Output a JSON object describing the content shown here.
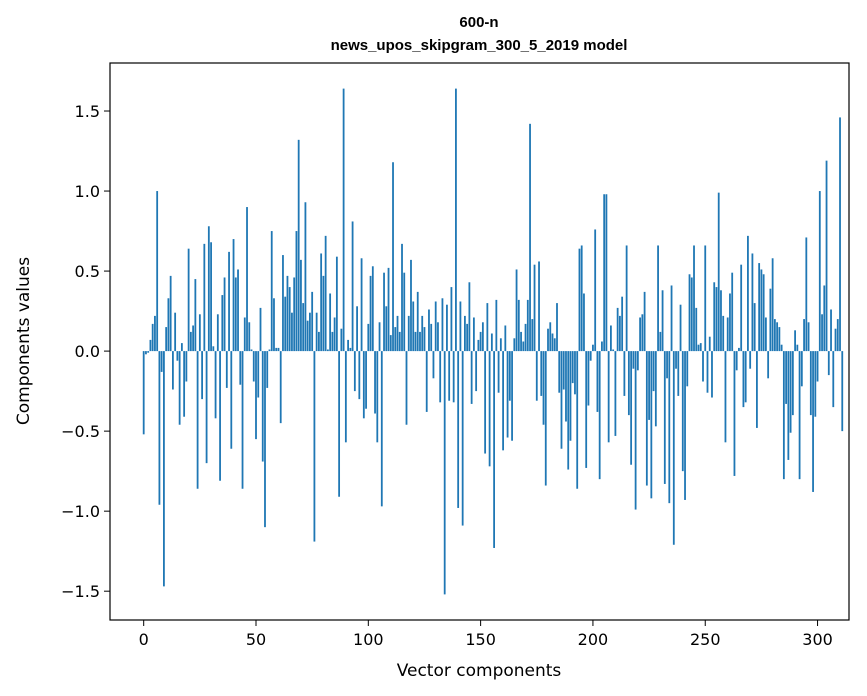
{
  "chart_data": {
    "type": "bar",
    "title": "600-n",
    "subtitle": "news_upos_skipgram_300_5_2019 model",
    "xlabel": "Vector components",
    "ylabel": "Components values",
    "xlim": [
      -15,
      314
    ],
    "ylim": [
      -1.68,
      1.8
    ],
    "xticks": [
      0,
      50,
      100,
      150,
      200,
      250,
      300
    ],
    "xtick_labels": [
      "0",
      "50",
      "100",
      "150",
      "200",
      "250",
      "300"
    ],
    "yticks": [
      -1.5,
      -1.0,
      -0.5,
      0.0,
      0.5,
      1.0,
      1.5
    ],
    "ytick_labels": [
      "−1.5",
      "−1.0",
      "−0.5",
      "0.0",
      "0.5",
      "1.0",
      "1.5"
    ],
    "bar_color": "#1f77b4",
    "grid": false,
    "values": [
      -0.52,
      -0.02,
      -0.01,
      0.07,
      0.17,
      0.22,
      1.0,
      -0.96,
      -0.13,
      -1.47,
      0.15,
      0.33,
      0.47,
      -0.24,
      0.24,
      -0.06,
      -0.46,
      0.05,
      -0.41,
      -0.19,
      0.64,
      0.12,
      0.16,
      0.45,
      -0.86,
      0.23,
      -0.3,
      0.67,
      -0.7,
      0.78,
      0.68,
      0.03,
      -0.42,
      0.23,
      -0.81,
      0.35,
      0.46,
      -0.23,
      0.62,
      -0.61,
      0.7,
      0.46,
      0.51,
      -0.21,
      -0.86,
      0.21,
      0.9,
      0.18,
      0.01,
      -0.19,
      -0.55,
      -0.29,
      0.27,
      -0.69,
      -1.1,
      -0.23,
      0.01,
      0.75,
      0.33,
      0.02,
      0.02,
      -0.45,
      0.6,
      0.34,
      0.47,
      0.4,
      0.24,
      0.46,
      0.75,
      1.32,
      0.57,
      0.3,
      0.93,
      0.19,
      0.24,
      0.37,
      -1.19,
      0.24,
      0.12,
      0.61,
      0.47,
      0.72,
      0.01,
      0.36,
      0.12,
      0.21,
      0.59,
      -0.91,
      0.14,
      1.64,
      -0.57,
      0.07,
      0.02,
      0.81,
      -0.25,
      0.28,
      -0.3,
      0.58,
      -0.42,
      -0.36,
      0.17,
      0.47,
      0.53,
      -0.39,
      -0.57,
      0.18,
      -0.97,
      0.49,
      0.28,
      0.52,
      0.1,
      1.18,
      0.15,
      0.22,
      0.12,
      0.67,
      0.49,
      -0.46,
      0.22,
      0.57,
      0.31,
      0.12,
      0.37,
      0.12,
      0.22,
      0.15,
      -0.38,
      0.26,
      0.17,
      -0.17,
      0.31,
      0.18,
      -0.32,
      0.33,
      -1.52,
      0.29,
      -0.31,
      0.4,
      -0.32,
      1.64,
      -0.98,
      0.31,
      -1.09,
      0.22,
      0.17,
      0.43,
      -0.33,
      0.21,
      -0.25,
      0.07,
      0.12,
      0.18,
      -0.64,
      0.3,
      -0.72,
      0.11,
      -1.23,
      0.32,
      -0.26,
      0.08,
      -0.62,
      0.16,
      -0.54,
      -0.31,
      -0.56,
      0.08,
      0.51,
      0.32,
      0.12,
      0.06,
      0.17,
      0.32,
      1.42,
      0.2,
      0.54,
      -0.31,
      0.56,
      -0.28,
      -0.46,
      -0.84,
      0.14,
      0.18,
      0.11,
      0.08,
      0.3,
      -0.26,
      -0.61,
      -0.24,
      -0.44,
      -0.74,
      -0.56,
      -0.2,
      -0.27,
      -0.86,
      0.64,
      0.66,
      0.36,
      -0.73,
      -0.34,
      -0.06,
      0.04,
      0.76,
      -0.38,
      -0.8,
      0.06,
      0.98,
      0.98,
      -0.57,
      0.16,
      0.01,
      -0.53,
      0.27,
      0.22,
      0.34,
      -0.28,
      0.66,
      -0.4,
      -0.71,
      -0.11,
      -0.99,
      -0.12,
      0.21,
      0.23,
      0.37,
      -0.84,
      -0.43,
      -0.92,
      -0.25,
      -0.47,
      0.66,
      0.12,
      0.38,
      -0.83,
      -0.17,
      -0.95,
      0.41,
      -1.21,
      -0.11,
      -0.28,
      0.29,
      -0.75,
      -0.93,
      -0.22,
      0.48,
      0.46,
      0.66,
      0.27,
      0.04,
      0.05,
      -0.19,
      0.66,
      -0.26,
      0.09,
      -0.29,
      0.43,
      0.4,
      0.99,
      0.38,
      0.22,
      -0.57,
      0.21,
      0.36,
      0.49,
      -0.78,
      -0.12,
      0.02,
      0.54,
      -0.35,
      -0.32,
      0.72,
      -0.11,
      0.61,
      0.3,
      -0.48,
      0.55,
      0.51,
      0.48,
      0.21,
      -0.17,
      0.39,
      0.58,
      0.2,
      0.18,
      0.15,
      0.04,
      -0.8,
      -0.33,
      -0.68,
      -0.51,
      -0.4,
      0.13,
      0.04,
      -0.8,
      -0.22,
      0.2,
      0.71,
      0.18,
      -0.4,
      -0.88,
      -0.41,
      -0.19,
      1.0,
      0.23,
      0.41,
      1.19,
      -0.15,
      0.26,
      -0.35,
      0.14,
      0.2,
      1.46,
      -0.5
    ]
  }
}
